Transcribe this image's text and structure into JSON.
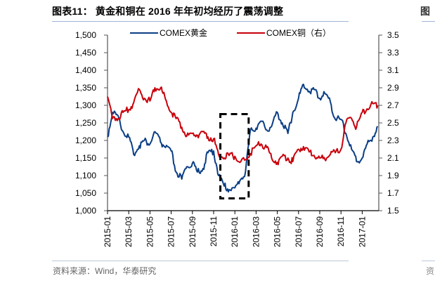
{
  "header": {
    "title": "图表11： 黄金和铜在 2016 年年初均经历了震荡调整",
    "right_stub": "图"
  },
  "footer": {
    "source": "资料来源：Wind，华泰研究",
    "right_stub": "资"
  },
  "colors": {
    "gold_series": "#0b3e85",
    "copper_series": "#c8000b",
    "axis": "#555555",
    "annotation_box": "#000000"
  },
  "chart_data": {
    "type": "line",
    "title": "黄金和铜在 2016 年年初均经历了震荡调整",
    "xlabel": "",
    "ylabel_left": "",
    "ylabel_right": "",
    "x_tick_labels": [
      "2015-01",
      "2015-03",
      "2015-05",
      "2015-07",
      "2015-09",
      "2015-11",
      "2016-01",
      "2016-03",
      "2016-05",
      "2016-07",
      "2016-09",
      "2016-11",
      "2017-01"
    ],
    "y_left": {
      "ticks": [
        "1,000",
        "1,050",
        "1,100",
        "1,150",
        "1,200",
        "1,250",
        "1,300",
        "1,350",
        "1,400",
        "1,450",
        "1,500"
      ],
      "range": [
        1000,
        1500
      ]
    },
    "y_right": {
      "ticks": [
        "1.5",
        "1.7",
        "1.9",
        "2.1",
        "2.3",
        "2.5",
        "2.7",
        "2.9",
        "3.1",
        "3.3",
        "3.5"
      ],
      "range": [
        1.5,
        3.5
      ]
    },
    "legend": {
      "position": "top",
      "entries": [
        "COMEX黄金",
        "COMEX铜（右）"
      ]
    },
    "grid": false,
    "annotation": {
      "type": "dashed-rectangle",
      "x_range": [
        "2015-11-20",
        "2016-02-10"
      ],
      "y_left_range": [
        1035,
        1275
      ]
    },
    "x": [
      "2015-01-01",
      "2015-01-15",
      "2015-02-01",
      "2015-02-15",
      "2015-03-01",
      "2015-03-15",
      "2015-04-01",
      "2015-04-15",
      "2015-05-01",
      "2015-05-15",
      "2015-06-01",
      "2015-06-15",
      "2015-07-01",
      "2015-07-15",
      "2015-08-01",
      "2015-08-15",
      "2015-09-01",
      "2015-09-15",
      "2015-10-01",
      "2015-10-15",
      "2015-11-01",
      "2015-11-15",
      "2015-12-01",
      "2015-12-15",
      "2016-01-01",
      "2016-01-15",
      "2016-02-01",
      "2016-02-15",
      "2016-03-01",
      "2016-03-15",
      "2016-04-01",
      "2016-04-15",
      "2016-05-01",
      "2016-05-15",
      "2016-06-01",
      "2016-06-15",
      "2016-07-01",
      "2016-07-15",
      "2016-08-01",
      "2016-08-15",
      "2016-09-01",
      "2016-09-15",
      "2016-10-01",
      "2016-10-15",
      "2016-11-01",
      "2016-11-15",
      "2016-12-01",
      "2016-12-15",
      "2017-01-01",
      "2017-01-15",
      "2017-02-01",
      "2017-02-15"
    ],
    "series": [
      {
        "name": "COMEX黄金",
        "axis": "left",
        "values": [
          1210,
          1280,
          1270,
          1225,
          1210,
          1160,
          1185,
          1200,
          1190,
          1225,
          1195,
          1180,
          1170,
          1110,
          1090,
          1125,
          1135,
          1110,
          1120,
          1165,
          1170,
          1100,
          1070,
          1060,
          1065,
          1085,
          1110,
          1230,
          1235,
          1255,
          1230,
          1240,
          1280,
          1250,
          1220,
          1280,
          1320,
          1360,
          1340,
          1345,
          1320,
          1335,
          1310,
          1260,
          1260,
          1220,
          1175,
          1140,
          1150,
          1190,
          1210,
          1240
        ]
      },
      {
        "name": "COMEX铜（右）",
        "axis": "right",
        "values": [
          2.8,
          2.55,
          2.55,
          2.62,
          2.65,
          2.73,
          2.88,
          2.78,
          2.75,
          2.9,
          2.9,
          2.77,
          2.62,
          2.55,
          2.45,
          2.35,
          2.38,
          2.36,
          2.4,
          2.34,
          2.32,
          2.14,
          2.1,
          2.13,
          2.12,
          2.05,
          2.08,
          2.15,
          2.24,
          2.26,
          2.22,
          2.1,
          2.05,
          2.12,
          2.1,
          2.06,
          2.2,
          2.23,
          2.17,
          2.13,
          2.1,
          2.09,
          2.14,
          2.16,
          2.2,
          2.5,
          2.55,
          2.45,
          2.62,
          2.66,
          2.72,
          2.7
        ]
      }
    ]
  }
}
